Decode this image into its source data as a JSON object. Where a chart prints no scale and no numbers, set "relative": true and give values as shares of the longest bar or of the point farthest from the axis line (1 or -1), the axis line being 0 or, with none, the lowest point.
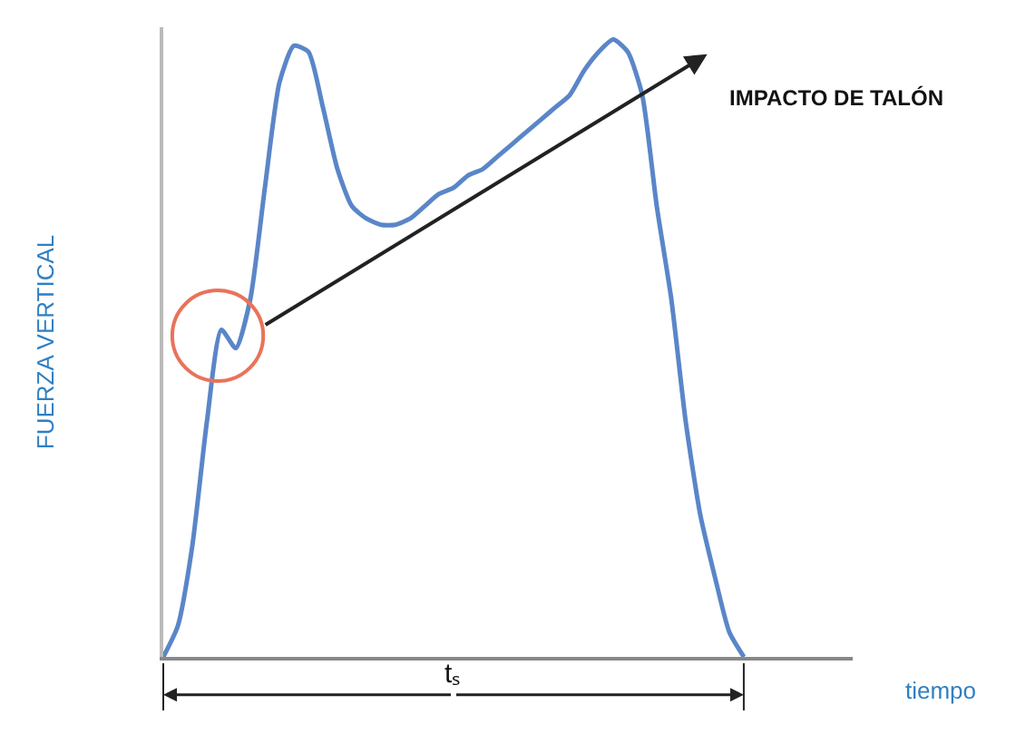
{
  "chart_data": {
    "type": "line",
    "relative": true,
    "ylabel": "FUERZA VERTICAL",
    "categories": [
      null,
      null,
      null,
      null,
      null,
      null,
      null,
      null,
      null,
      null,
      null,
      null,
      null,
      null,
      null,
      null,
      null,
      null,
      null,
      null,
      null,
      null,
      null,
      null,
      null,
      null,
      null,
      null,
      null,
      null,
      null,
      null,
      null,
      null,
      null,
      null,
      null,
      null,
      null,
      null,
      null
    ],
    "series": [
      {
        "color": "#5a86c8",
        "values": [
          0,
          0.05,
          0.18,
          0.38,
          0.53,
          0.5,
          0.58,
          0.76,
          0.93,
          0.99,
          0.98,
          0.89,
          0.79,
          0.73,
          0.71,
          0.7,
          0.7,
          0.71,
          0.73,
          0.75,
          0.76,
          0.78,
          0.79,
          0.81,
          0.83,
          0.85,
          0.87,
          0.89,
          0.91,
          0.95,
          0.98,
          1,
          0.98,
          0.91,
          0.73,
          0.58,
          0.38,
          0.23,
          0.13,
          0.04,
          0
        ]
      }
    ],
    "annotations": [
      "IMPACTO DE TALÓN",
      "tₛ",
      "tiempo"
    ],
    "legend": false,
    "marker": "none",
    "line_style": "solid"
  }
}
